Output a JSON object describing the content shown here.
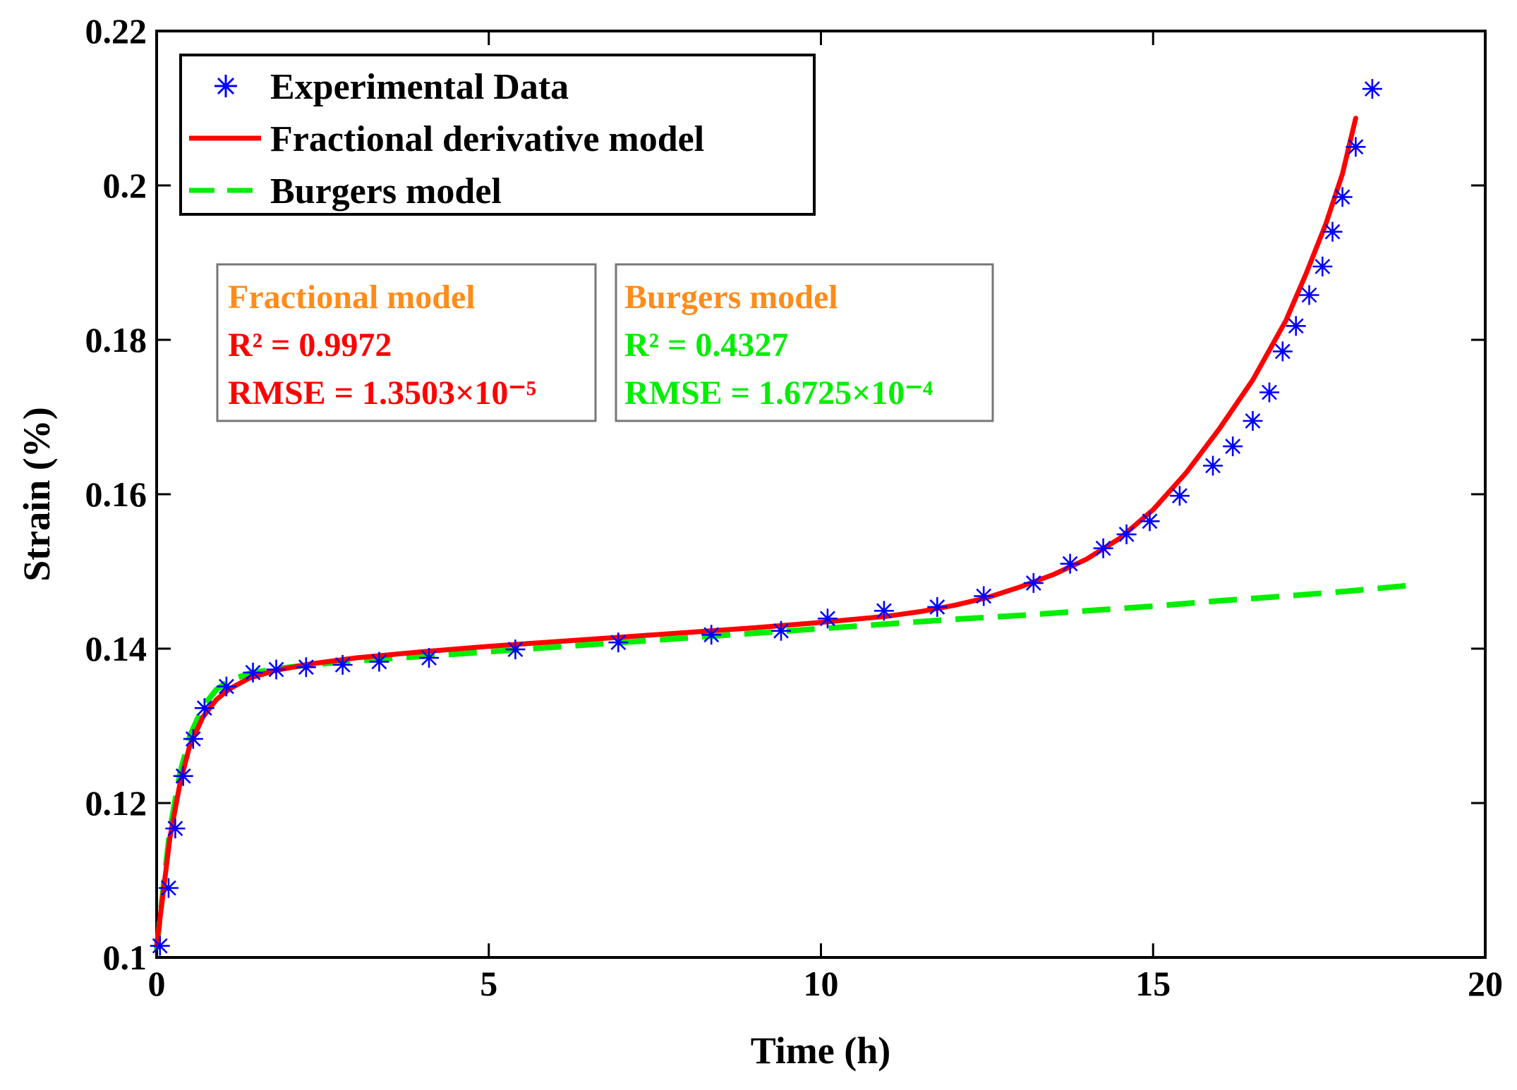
{
  "chart_data": {
    "type": "line",
    "xlabel": "Time (h)",
    "ylabel": "Strain (%)",
    "xlim": [
      0,
      20
    ],
    "ylim": [
      0.1,
      0.22
    ],
    "xticks": [
      0,
      5,
      10,
      15,
      20
    ],
    "xtick_labels": [
      "0",
      "5",
      "10",
      "15",
      "20"
    ],
    "yticks": [
      0.1,
      0.12,
      0.14,
      0.16,
      0.18,
      0.2,
      0.22
    ],
    "ytick_labels": [
      "0.1",
      "0.12",
      "0.14",
      "0.16",
      "0.18",
      "0.2",
      "0.22"
    ],
    "grid": false,
    "legend_position": "top-left",
    "series": [
      {
        "name": "Experimental Data",
        "style": "markers",
        "marker": "*",
        "color": "#0000ff",
        "x": [
          0.05,
          0.18,
          0.28,
          0.4,
          0.55,
          0.72,
          1.05,
          1.45,
          1.8,
          2.25,
          2.8,
          3.35,
          4.1,
          5.4,
          6.95,
          8.35,
          9.4,
          10.1,
          10.95,
          11.75,
          12.45,
          13.2,
          13.75,
          14.25,
          14.6,
          14.95,
          15.4,
          15.9,
          16.2,
          16.5,
          16.75,
          16.95,
          17.15,
          17.35,
          17.55,
          17.7,
          17.85,
          18.05,
          18.3
        ],
        "y": [
          0.1015,
          0.109,
          0.1167,
          0.1235,
          0.1283,
          0.1323,
          0.1351,
          0.1369,
          0.1373,
          0.1376,
          0.1379,
          0.1383,
          0.1388,
          0.1399,
          0.1408,
          0.1418,
          0.1423,
          0.1439,
          0.1449,
          0.1454,
          0.1468,
          0.1485,
          0.151,
          0.153,
          0.1548,
          0.1565,
          0.1598,
          0.1637,
          0.1662,
          0.1695,
          0.1732,
          0.1785,
          0.1818,
          0.1858,
          0.1895,
          0.194,
          0.1985,
          0.205,
          0.2125
        ]
      },
      {
        "name": "Fractional derivative model",
        "style": "solid",
        "color": "#ff0000",
        "x": [
          0,
          0.1,
          0.2,
          0.35,
          0.5,
          0.7,
          0.9,
          1.1,
          1.4,
          1.8,
          2.3,
          3,
          4,
          5,
          6,
          7,
          8,
          9,
          10,
          11,
          11.5,
          12,
          12.5,
          13,
          13.5,
          14,
          14.5,
          15,
          15.5,
          16,
          16.5,
          17,
          17.3,
          17.6,
          17.85,
          18.05
        ],
        "y": [
          0.1015,
          0.1085,
          0.1155,
          0.1225,
          0.1275,
          0.1312,
          0.1334,
          0.1348,
          0.1362,
          0.1372,
          0.138,
          0.1388,
          0.1396,
          0.1403,
          0.1409,
          0.1415,
          0.1421,
          0.1427,
          0.1434,
          0.1442,
          0.1448,
          0.1456,
          0.1466,
          0.148,
          0.1496,
          0.1516,
          0.1543,
          0.158,
          0.1628,
          0.1685,
          0.1748,
          0.1825,
          0.1885,
          0.195,
          0.2015,
          0.2087
        ]
      },
      {
        "name": "Burgers model",
        "style": "dashed",
        "color": "#00ee00",
        "x": [
          0,
          0.1,
          0.2,
          0.35,
          0.5,
          0.7,
          0.9,
          1.1,
          1.4,
          1.8,
          2.3,
          3,
          4,
          5,
          6,
          7,
          8,
          9,
          10,
          11,
          12,
          13,
          14,
          15,
          16,
          17,
          18,
          19
        ],
        "y": [
          0.101,
          0.109,
          0.1165,
          0.1238,
          0.1287,
          0.1325,
          0.1347,
          0.1359,
          0.1368,
          0.1374,
          0.1379,
          0.1384,
          0.139,
          0.1396,
          0.1402,
          0.1408,
          0.1414,
          0.142,
          0.1426,
          0.1432,
          0.1438,
          0.1443,
          0.1449,
          0.1455,
          0.1462,
          0.1468,
          0.1475,
          0.1483
        ]
      }
    ],
    "annotations": [
      {
        "title": "Fractional model",
        "r2": "R² = 0.9972",
        "rmse": "RMSE = 1.3503×10⁻⁵",
        "title_color": "#ff8c1a",
        "text_color": "#ff0000"
      },
      {
        "title": "Burgers model",
        "r2": "R² = 0.4327",
        "rmse": "RMSE = 1.6725×10⁻⁴",
        "title_color": "#ff8c1a",
        "text_color": "#00ee00"
      }
    ]
  }
}
